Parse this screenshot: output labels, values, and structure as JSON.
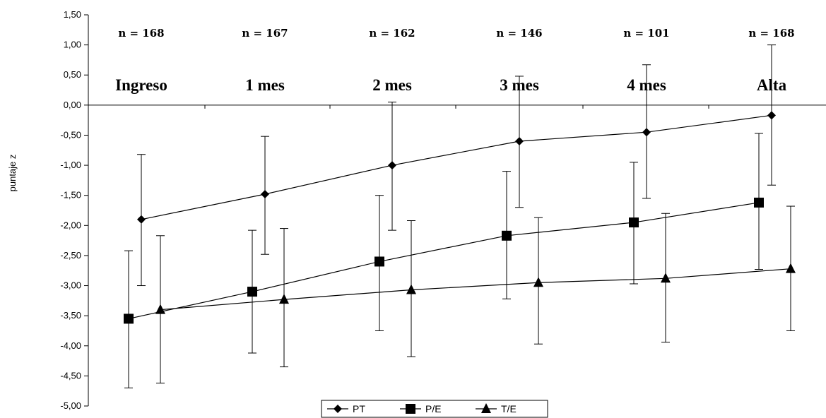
{
  "chart_data": {
    "type": "line",
    "categories": [
      "Ingreso",
      "1 mes",
      "2 mes",
      "3 mes",
      "4 mes",
      "Alta"
    ],
    "n_labels": [
      "n = 168",
      "n = 167",
      "n = 162",
      "n = 146",
      "n = 101",
      "n = 168"
    ],
    "ylabel": "puntaje z",
    "ylim": [
      -5.0,
      1.5
    ],
    "yticks": [
      "1,50",
      "1,00",
      "0,50",
      "0,00",
      "-0,50",
      "-1,00",
      "-1,50",
      "-2,00",
      "-2,50",
      "-3,00",
      "-3,50",
      "-4,00",
      "-4,50",
      "-5,00"
    ],
    "ytick_values": [
      1.5,
      1.0,
      0.5,
      0.0,
      -0.5,
      -1.0,
      -1.5,
      -2.0,
      -2.5,
      -3.0,
      -3.5,
      -4.0,
      -4.5,
      -5.0
    ],
    "legend_position": "bottom",
    "series": [
      {
        "name": "PT",
        "marker": "diamond",
        "values": [
          -1.9,
          -1.48,
          -1.0,
          -0.6,
          -0.45,
          -0.17
        ],
        "error_low": [
          -3.0,
          -2.48,
          -2.08,
          -1.7,
          -1.55,
          -1.33
        ],
        "error_high": [
          -0.82,
          -0.52,
          0.05,
          0.48,
          0.67,
          1.0
        ]
      },
      {
        "name": "P/E",
        "marker": "square",
        "values": [
          -3.55,
          -3.1,
          -2.6,
          -2.17,
          -1.95,
          -1.62
        ],
        "error_low": [
          -4.7,
          -4.12,
          -3.75,
          -3.22,
          -2.97,
          -2.73
        ],
        "error_high": [
          -2.42,
          -2.08,
          -1.5,
          -1.1,
          -0.95,
          -0.47
        ]
      },
      {
        "name": "T/E",
        "marker": "triangle",
        "values": [
          -3.4,
          -3.23,
          -3.07,
          -2.95,
          -2.88,
          -2.72
        ],
        "error_low": [
          -4.62,
          -4.35,
          -4.18,
          -3.97,
          -3.94,
          -3.75
        ],
        "error_high": [
          -2.17,
          -2.05,
          -1.92,
          -1.87,
          -1.8,
          -1.68
        ]
      }
    ]
  }
}
